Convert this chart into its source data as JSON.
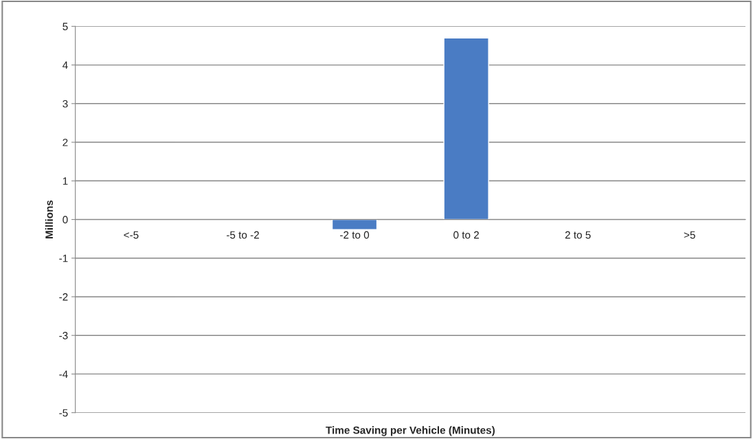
{
  "chart_data": {
    "type": "bar",
    "xlabel": "Time Saving per Vehicle (Minutes)",
    "ylabel": "Millions",
    "categories": [
      "<-5",
      "-5 to -2",
      "-2 to 0",
      "0 to 2",
      "2 to 5",
      ">5"
    ],
    "values": [
      null,
      null,
      -0.26,
      4.7,
      null,
      null
    ],
    "color": "#4a7cc4",
    "ylim": [
      -5,
      5
    ],
    "yticks": [
      -5,
      -4,
      -3,
      -2,
      -1,
      0,
      1,
      2,
      3,
      4,
      5
    ],
    "grid": "y",
    "legend": false
  }
}
